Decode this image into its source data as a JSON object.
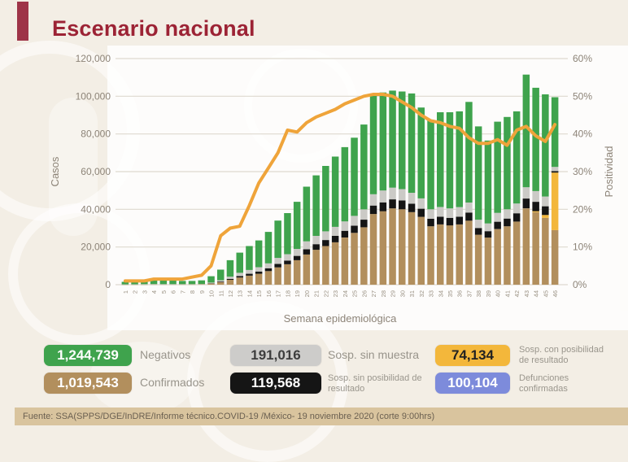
{
  "title": "Escenario nacional",
  "accent_color": "#9E3448",
  "title_color": "#9C2335",
  "footer": {
    "source": "Fuente: SSA(SPPS/DGE/InDRE/Informe técnico.COVID-19 /México- 19 noviembre 2020 (corte 9:00hrs)"
  },
  "legend": {
    "items": [
      {
        "id": "negativos",
        "value": "1,244,739",
        "label": "Negativos",
        "color": "#3FA34D",
        "text_color": "#FFFFFF"
      },
      {
        "id": "sosp-sin-muestra",
        "value": "191,016",
        "label": "Sosp. sin muestra",
        "color": "#CDCCCA",
        "text_color": "#3D3D3D"
      },
      {
        "id": "sosp-con-posibilidad",
        "value": "74,134",
        "label": "Sosp. con posibilidad de resultado",
        "color": "#F3B73B",
        "text_color": "#222222"
      },
      {
        "id": "confirmados",
        "value": "1,019,543",
        "label": "Confirmados",
        "color": "#B28F5D",
        "text_color": "#FFFFFF"
      },
      {
        "id": "sosp-sin-posibilidad",
        "value": "119,568",
        "label": "Sosp. sin posibilidad de resultado",
        "color": "#151515",
        "text_color": "#FFFFFF"
      },
      {
        "id": "defunciones",
        "value": "100,104",
        "label": "Defunciones confirmadas",
        "color": "#7D8BDB",
        "text_color": "#FFFFFF"
      }
    ]
  },
  "chart_data": {
    "type": "bar",
    "subtype": "stacked-bars-with-line",
    "title": "Escenario nacional",
    "xlabel": "Semana epidemiológica",
    "ylabel_left": "Casos",
    "ylabel_right": "Positividad",
    "grid": true,
    "legend_position": "bottom",
    "ylim_left": [
      0,
      120000
    ],
    "ylim_right_pct": [
      0,
      60
    ],
    "y_ticks_left": [
      "0",
      "20,000",
      "40,000",
      "60,000",
      "80,000",
      "100,000",
      "120,000"
    ],
    "y_ticks_right": [
      "0%",
      "10%",
      "20%",
      "30%",
      "40%",
      "50%",
      "60%"
    ],
    "x": [
      1,
      2,
      3,
      4,
      5,
      6,
      7,
      8,
      9,
      10,
      11,
      12,
      13,
      14,
      15,
      16,
      17,
      18,
      19,
      20,
      21,
      22,
      23,
      24,
      25,
      26,
      27,
      28,
      29,
      30,
      31,
      32,
      33,
      34,
      35,
      36,
      37,
      38,
      39,
      40,
      41,
      42,
      43,
      44,
      45,
      46
    ],
    "series": [
      {
        "name": "Confirmados",
        "color": "#B28F5D",
        "values": [
          50,
          80,
          100,
          120,
          120,
          120,
          120,
          130,
          200,
          600,
          1400,
          2600,
          3800,
          4800,
          5800,
          7200,
          9200,
          10800,
          13000,
          16000,
          18500,
          20500,
          22500,
          25000,
          27500,
          30500,
          37500,
          39000,
          40500,
          40000,
          38500,
          36000,
          31000,
          32000,
          31500,
          32000,
          34000,
          26500,
          25000,
          29500,
          31000,
          33500,
          40500,
          38500,
          35500,
          29000
        ]
      },
      {
        "name": "Sosp. con posibilidad de resultado",
        "color": "#F3B73B",
        "values": [
          0,
          0,
          0,
          0,
          0,
          0,
          0,
          0,
          0,
          0,
          0,
          0,
          0,
          0,
          0,
          0,
          0,
          0,
          0,
          0,
          0,
          0,
          0,
          0,
          0,
          0,
          0,
          0,
          0,
          0,
          0,
          0,
          0,
          0,
          0,
          0,
          0,
          0,
          0,
          0,
          0,
          0,
          0,
          500,
          1500,
          30500
        ]
      },
      {
        "name": "Sosp. sin posibilidad de resultado",
        "color": "#151515",
        "values": [
          0,
          0,
          0,
          0,
          0,
          0,
          0,
          0,
          0,
          150,
          300,
          500,
          800,
          1000,
          1200,
          1500,
          1800,
          2000,
          2300,
          2800,
          3000,
          3200,
          3400,
          3600,
          3800,
          4000,
          4500,
          4700,
          4800,
          4700,
          4500,
          4300,
          4000,
          4100,
          4000,
          4100,
          4300,
          3600,
          3400,
          3900,
          4100,
          4400,
          5200,
          5000,
          4600,
          800
        ]
      },
      {
        "name": "Sosp. sin muestra",
        "color": "#CBCAC6",
        "values": [
          100,
          150,
          200,
          220,
          200,
          200,
          180,
          180,
          200,
          400,
          700,
          1200,
          1700,
          2000,
          2300,
          2600,
          3200,
          3400,
          3700,
          4200,
          4400,
          4600,
          4800,
          5000,
          5200,
          5500,
          6000,
          6300,
          6200,
          6000,
          5800,
          5500,
          5000,
          5100,
          5000,
          5100,
          5300,
          4400,
          4100,
          4700,
          4900,
          5200,
          6000,
          5700,
          5200,
          2200
        ]
      },
      {
        "name": "Negativos",
        "color": "#3FA34D",
        "values": [
          1350,
          1670,
          1900,
          2160,
          1980,
          1880,
          1700,
          1690,
          1900,
          3350,
          5600,
          8700,
          10700,
          12700,
          14200,
          16700,
          19800,
          21800,
          25000,
          29000,
          32100,
          34700,
          37300,
          39400,
          41500,
          45000,
          53000,
          52000,
          51500,
          51800,
          52700,
          48200,
          47500,
          50300,
          51000,
          50800,
          53400,
          49500,
          44000,
          48400,
          49000,
          48900,
          59800,
          54800,
          54200,
          37000
        ]
      }
    ],
    "line": {
      "name": "Positividad",
      "color": "#EFA43A",
      "values_pct": [
        1,
        1,
        1,
        1.5,
        1.5,
        1.5,
        1.5,
        2,
        2.5,
        5,
        13,
        15,
        15.5,
        21,
        27,
        31,
        35,
        41,
        40.5,
        43,
        44.5,
        45.5,
        46.5,
        48,
        49,
        50,
        50.5,
        50.5,
        50,
        48.5,
        47,
        45,
        43.5,
        43,
        42,
        41.5,
        39,
        37.5,
        37.5,
        38.5,
        37,
        41,
        42,
        39.5,
        38,
        42.5
      ]
    }
  }
}
